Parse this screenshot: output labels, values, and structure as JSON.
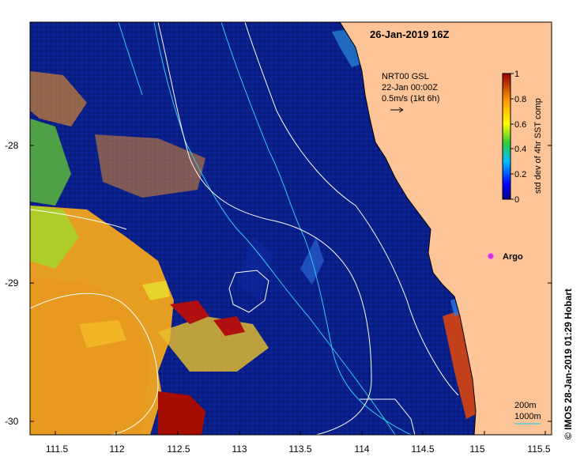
{
  "map": {
    "title": "26-Jan-2019 16Z",
    "x_ticks": [
      "111.5",
      "112",
      "112.5",
      "113",
      "113.5",
      "114",
      "114.5",
      "115",
      "115.5"
    ],
    "y_ticks": [
      "-28",
      "-29",
      "-30"
    ],
    "current_legend": {
      "line1": "NRT00 GSL",
      "line2": "22-Jan 00:00Z",
      "line3": "0.5m/s (1kt 6h)"
    },
    "argo_label": "Argo",
    "depth_legend": {
      "line1": "200m",
      "line2": "1000m",
      "color_200m": "#ffffff",
      "color_1000m": "#33ccee"
    },
    "colorbar": {
      "label": "std dev of 4hr SST comp",
      "ticks": [
        "0",
        "0.2",
        "0.4",
        "0.6",
        "0.8",
        "1"
      ],
      "min": 0,
      "max": 1
    },
    "credit": "© IMOS 28-Jan-2019 01:29 Hobart",
    "colors": {
      "ocean": "#0a1f8a",
      "land": "#fdc497",
      "argo": "#cc33cc"
    }
  }
}
